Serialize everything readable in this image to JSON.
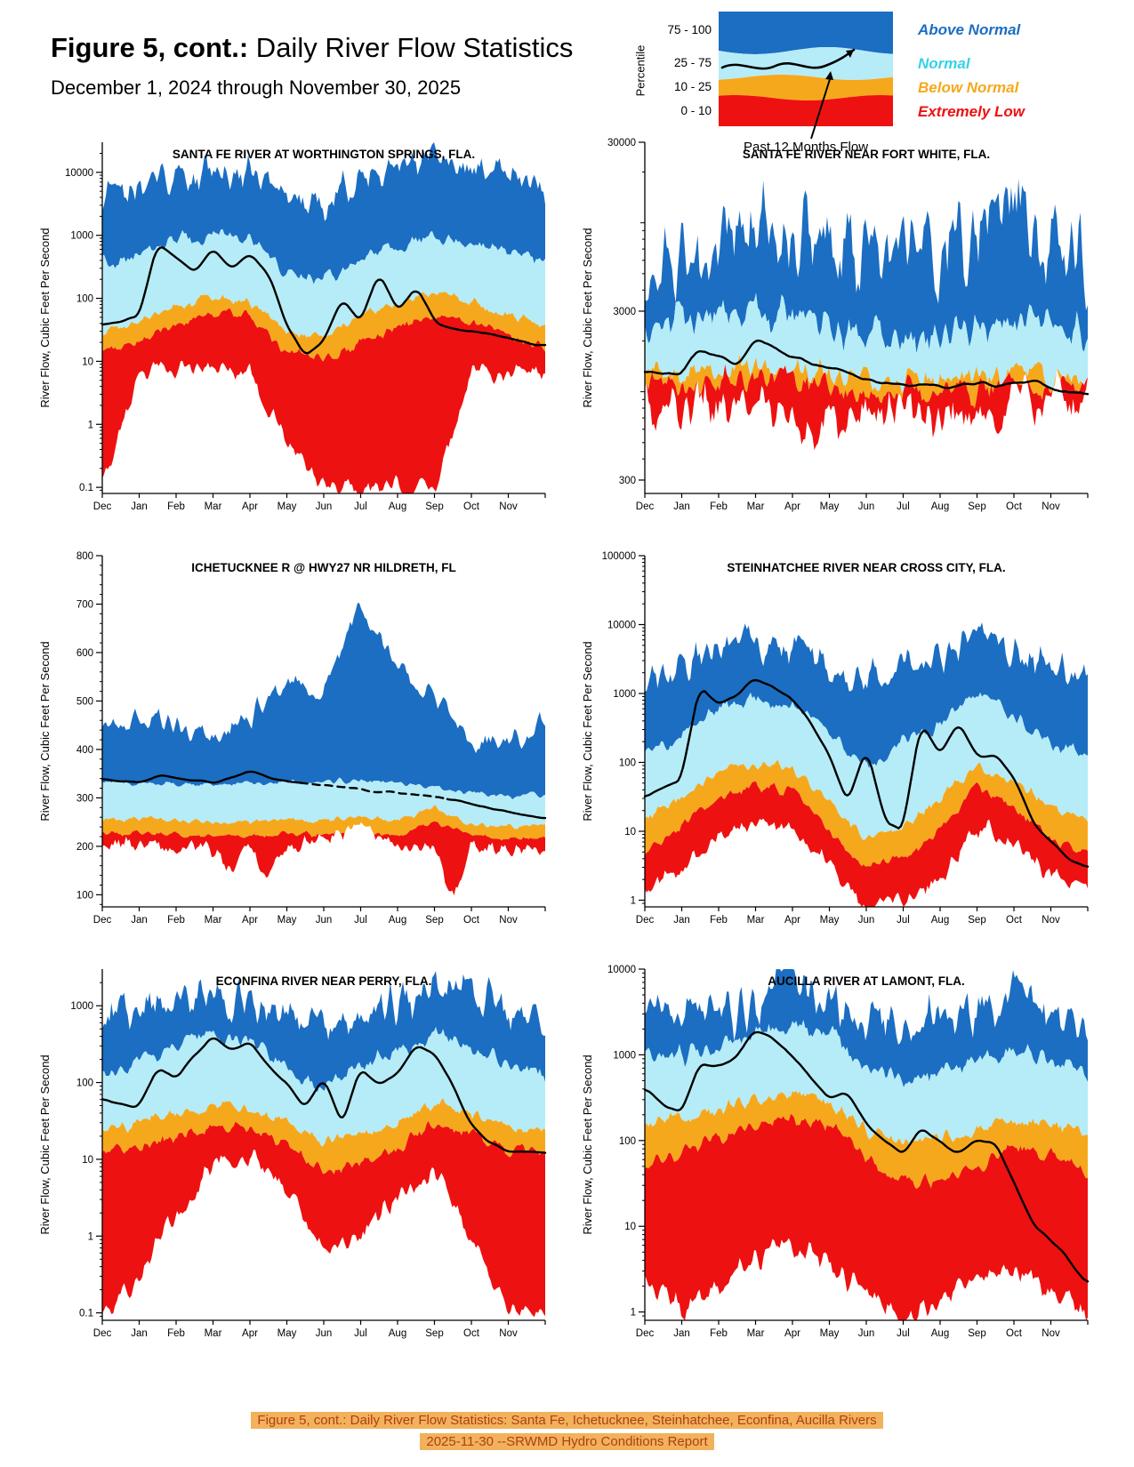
{
  "header": {
    "title_bold": "Figure 5, cont.:",
    "title_rest": " Daily River Flow Statistics",
    "subtitle": "December 1, 2024 through November 30, 2025"
  },
  "legend": {
    "percentile_label": "Percentile",
    "ranges": [
      "75 - 100",
      "25 - 75",
      "10 - 25",
      "0 - 10"
    ],
    "categories": [
      {
        "label": "Above Normal",
        "color": "#1b6ec2"
      },
      {
        "label": "Normal",
        "color": "#35d2e8"
      },
      {
        "label": "Below Normal",
        "color": "#f6a81c"
      },
      {
        "label": "Extremely Low",
        "color": "#ee1111"
      }
    ],
    "flow_label": "Past 12 Months Flow"
  },
  "colors": {
    "above_normal": "#1b6ec2",
    "normal": "#b5ecf7",
    "below_normal": "#f6a81c",
    "extremely_low": "#ee1111",
    "flow_line": "#000000"
  },
  "x_axis": {
    "months": [
      "Dec",
      "Jan",
      "Feb",
      "Mar",
      "Apr",
      "May",
      "Jun",
      "Jul",
      "Aug",
      "Sep",
      "Oct",
      "Nov"
    ]
  },
  "y_axis_label": "River Flow, Cubic Feet Per Second",
  "chart_data": [
    {
      "type": "area",
      "title": "SANTA FE RIVER AT WORTHINGTON SPRINGS, FLA.",
      "scale": "log",
      "y_min": 0.08,
      "y_max": 30000,
      "y_ticks": [
        0.1,
        1,
        10,
        100,
        1000,
        10000
      ],
      "y_tick_labels": [
        "0.1",
        "1",
        "10",
        "100",
        "1000",
        "10000"
      ],
      "bands": {
        "p100": [
          4000,
          7000,
          9000,
          10000,
          9000,
          4000,
          3000,
          8000,
          12000,
          18000,
          12000,
          8000,
          5000
        ],
        "p75": [
          350,
          500,
          900,
          1000,
          800,
          250,
          200,
          400,
          600,
          1000,
          800,
          500,
          400
        ],
        "p25": [
          30,
          40,
          70,
          100,
          85,
          30,
          25,
          50,
          80,
          120,
          90,
          50,
          40
        ],
        "p10": [
          15,
          20,
          40,
          60,
          50,
          15,
          10,
          20,
          35,
          55,
          40,
          25,
          18
        ],
        "p0": [
          0.1,
          7,
          8,
          8,
          7,
          0.5,
          0.1,
          0.1,
          0.1,
          0.1,
          7,
          7,
          7
        ]
      },
      "flow": [
        40,
        45,
        50,
        700,
        450,
        250,
        600,
        300,
        500,
        250,
        35,
        12,
        20,
        100,
        40,
        250,
        60,
        150,
        45,
        33,
        30,
        27,
        24,
        20,
        17
      ]
    },
    {
      "type": "area",
      "title": "SANTA FE RIVER NEAR FORT WHITE, FLA.",
      "scale": "log",
      "y_min": 250,
      "y_max": 30000,
      "y_ticks": [
        300,
        3000,
        30000
      ],
      "y_tick_labels": [
        "300",
        "3000",
        "30000"
      ],
      "bands": {
        "p100": [
          5000,
          6500,
          8000,
          12000,
          9000,
          7000,
          6000,
          7000,
          6000,
          8000,
          15000,
          8000,
          6000
        ],
        "p75": [
          2300,
          2400,
          2700,
          3000,
          2800,
          2400,
          2200,
          2100,
          2100,
          2300,
          2600,
          2400,
          2200
        ],
        "p25": [
          1250,
          1300,
          1350,
          1400,
          1350,
          1250,
          1150,
          1100,
          1120,
          1200,
          1300,
          1250,
          1200
        ],
        "p10": [
          1050,
          1080,
          1120,
          1150,
          1100,
          1050,
          1000,
          980,
          970,
          1020,
          1100,
          1070,
          1040
        ],
        "p0": [
          800,
          800,
          800,
          810,
          820,
          840,
          850,
          840,
          830,
          450,
          800,
          780,
          760,
          750,
          740,
          730,
          720,
          700,
          710,
          780,
          850,
          900,
          930,
          880,
          830
        ]
      },
      "flow": [
        1320,
        1300,
        1280,
        1750,
        1550,
        1450,
        1950,
        1850,
        1600,
        1450,
        1350,
        1280,
        1200,
        1150,
        1100,
        1060,
        1040,
        1080,
        1150,
        1100,
        1070,
        1150,
        1060,
        1020,
        990
      ]
    },
    {
      "type": "area",
      "title": "ICHETUCKNEE R @ HWY27 NR HILDRETH, FL",
      "scale": "linear",
      "y_min": 75,
      "y_max": 800,
      "y_minor_step": 20,
      "y_ticks": [
        100,
        200,
        300,
        400,
        500,
        600,
        700,
        800
      ],
      "y_tick_labels": [
        "100",
        "200",
        "300",
        "400",
        "500",
        "600",
        "700",
        "800"
      ],
      "bands": {
        "p100": [
          430,
          470,
          450,
          430,
          460,
          540,
          520,
          700,
          560,
          500,
          430,
          400,
          470
        ],
        "p75": [
          330,
          332,
          330,
          328,
          330,
          334,
          332,
          336,
          330,
          322,
          310,
          302,
          308
        ],
        "p25": [
          256,
          258,
          254,
          250,
          252,
          256,
          254,
          260,
          252,
          280,
          246,
          240,
          246
        ],
        "p10": [
          226,
          228,
          224,
          220,
          222,
          226,
          224,
          230,
          222,
          250,
          228,
          214,
          218
        ],
        "p0": [
          205,
          207,
          206,
          204,
          202,
          200,
          196,
          150,
          200,
          130,
          200,
          206,
          208,
          230,
          235,
          215,
          205,
          200,
          198,
          90,
          205,
          200,
          194,
          192,
          198
        ]
      },
      "flow": [
        340,
        336,
        332,
        346,
        342,
        336,
        330,
        342,
        356,
        344,
        334,
        330,
        326,
        322,
        318,
        314,
        310,
        306,
        302,
        296,
        288,
        278,
        270,
        264,
        260
      ],
      "flow_dash": [
        0.45,
        0.78
      ]
    },
    {
      "type": "area",
      "title": "STEINHATCHEE RIVER NEAR CROSS CITY, FLA.",
      "scale": "log",
      "y_min": 0.8,
      "y_max": 100000,
      "y_ticks": [
        1,
        10,
        100,
        1000,
        10000,
        100000
      ],
      "y_tick_labels": [
        "1",
        "10",
        "100",
        "1000",
        "10000",
        "100000"
      ],
      "bands": {
        "p100": [
          1200,
          2500,
          5000,
          5500,
          4500,
          2500,
          1800,
          3000,
          3500,
          9000,
          5000,
          3000,
          1800
        ],
        "p75": [
          120,
          250,
          650,
          850,
          700,
          250,
          90,
          200,
          350,
          1000,
          500,
          200,
          130
        ],
        "p25": [
          15,
          30,
          70,
          100,
          80,
          25,
          8,
          12,
          30,
          90,
          50,
          22,
          15
        ],
        "p10": [
          5,
          12,
          30,
          50,
          40,
          10,
          3,
          4,
          10,
          45,
          20,
          8,
          5
        ],
        "p0": [
          1.5,
          3,
          8,
          12,
          10,
          3,
          0.9,
          1,
          2,
          12,
          6,
          2.5,
          1.5
        ]
      },
      "flow": [
        30,
        45,
        55,
        1300,
        700,
        950,
        1700,
        1200,
        850,
        350,
        120,
        25,
        160,
        14,
        10,
        380,
        130,
        380,
        120,
        130,
        60,
        14,
        7,
        4,
        3
      ]
    },
    {
      "type": "area",
      "title": "ECONFINA RIVER NEAR PERRY, FLA.",
      "scale": "log",
      "y_min": 0.08,
      "y_max": 3000,
      "y_ticks": [
        0.1,
        1,
        10,
        100,
        1000
      ],
      "y_tick_labels": [
        "0.1",
        "1",
        "10",
        "100",
        "1000"
      ],
      "bands": {
        "p100": [
          800,
          950,
          1100,
          1300,
          1150,
          700,
          550,
          800,
          1100,
          1700,
          1300,
          900,
          650
        ],
        "p75": [
          130,
          180,
          300,
          400,
          350,
          150,
          90,
          150,
          280,
          400,
          300,
          180,
          120
        ],
        "p25": [
          25,
          30,
          40,
          50,
          46,
          28,
          16,
          20,
          32,
          52,
          40,
          28,
          23
        ],
        "p10": [
          12,
          15,
          20,
          28,
          26,
          14,
          7,
          9,
          14,
          30,
          22,
          14,
          11
        ],
        "p0": [
          0.1,
          0.3,
          2,
          8,
          11,
          4,
          0.6,
          1,
          3,
          8,
          1,
          0.1,
          0.1
        ]
      },
      "flow": [
        60,
        52,
        48,
        160,
        110,
        230,
        400,
        260,
        340,
        160,
        100,
        45,
        110,
        28,
        150,
        90,
        130,
        300,
        240,
        90,
        28,
        16,
        13,
        12,
        12
      ]
    },
    {
      "type": "area",
      "title": "AUCILLA RIVER AT LAMONT, FLA.",
      "scale": "log",
      "y_min": 0.8,
      "y_max": 10000,
      "y_ticks": [
        1,
        10,
        100,
        1000,
        10000
      ],
      "y_tick_labels": [
        "1",
        "10",
        "100",
        "1000",
        "10000"
      ],
      "bands": {
        "p100": [
          6000,
          3200,
          3000,
          3600,
          9000,
          4000,
          2200,
          2000,
          2800,
          3000,
          5000,
          3000,
          2400
        ],
        "p75": [
          900,
          1000,
          1300,
          1800,
          2200,
          1800,
          800,
          550,
          650,
          900,
          1000,
          900,
          650
        ],
        "p25": [
          160,
          180,
          230,
          300,
          330,
          280,
          130,
          95,
          105,
          130,
          170,
          160,
          115
        ],
        "p10": [
          55,
          70,
          110,
          160,
          190,
          160,
          60,
          32,
          35,
          50,
          80,
          70,
          42
        ],
        "p0": [
          2,
          1.2,
          2,
          4,
          6,
          4,
          1.5,
          0.9,
          1.1,
          2.5,
          3,
          2,
          1
        ]
      },
      "flow": [
        420,
        260,
        210,
        800,
        700,
        950,
        2000,
        1500,
        950,
        550,
        320,
        360,
        160,
        100,
        70,
        140,
        95,
        70,
        105,
        90,
        32,
        11,
        7,
        4,
        2
      ]
    }
  ],
  "footer": {
    "line1": "Figure 5, cont.: Daily River Flow Statistics: Santa Fe, Ichetucknee, Steinhatchee, Econfina, Aucilla Rivers",
    "line2": "2025-11-30 --SRWMD Hydro Conditions Report",
    "highlight": "#f2b25c",
    "text_color": "#ad3f16"
  }
}
